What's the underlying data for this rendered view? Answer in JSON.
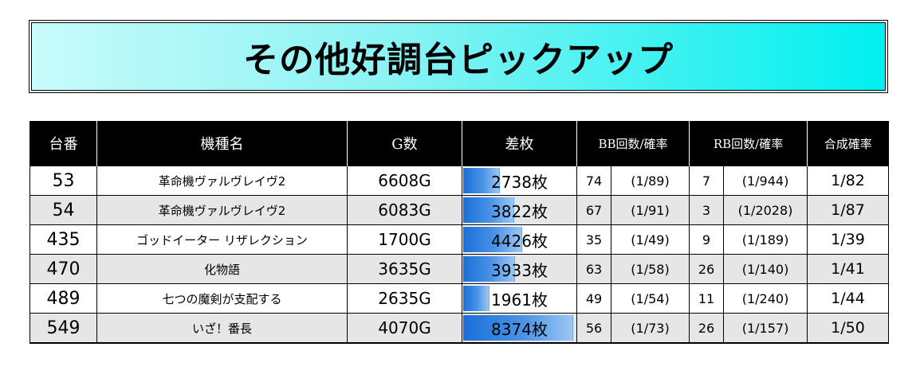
{
  "title": "その他好調台ピックアップ",
  "colors": {
    "header_bg": "#000000",
    "header_text": "#ffffff",
    "row_alt": "#e6e6e6",
    "title_gradient_start": "#c8fbfb",
    "title_gradient_end": "#00f0f0",
    "bar_color": "#1a6fd8"
  },
  "headers": {
    "unit": "台番",
    "machine": "機種名",
    "games": "G数",
    "diff": "差枚",
    "bb": "BB回数/確率",
    "rb": "RB回数/確率",
    "combined": "合成確率"
  },
  "diff_bar_max": 8374,
  "rows": [
    {
      "unit": "53",
      "machine": "革命機ヴァルヴレイヴ2",
      "games": "6608G",
      "diff": "2738枚",
      "diff_value": 2738,
      "bb_count": "74",
      "bb_rate": "(1/89)",
      "rb_count": "7",
      "rb_rate": "(1/944)",
      "combined": "1/82"
    },
    {
      "unit": "54",
      "machine": "革命機ヴァルヴレイヴ2",
      "games": "6083G",
      "diff": "3822枚",
      "diff_value": 3822,
      "bb_count": "67",
      "bb_rate": "(1/91)",
      "rb_count": "3",
      "rb_rate": "(1/2028)",
      "combined": "1/87"
    },
    {
      "unit": "435",
      "machine": "ゴッドイーター リザレクション",
      "games": "1700G",
      "diff": "4426枚",
      "diff_value": 4426,
      "bb_count": "35",
      "bb_rate": "(1/49)",
      "rb_count": "9",
      "rb_rate": "(1/189)",
      "combined": "1/39"
    },
    {
      "unit": "470",
      "machine": "化物語",
      "games": "3635G",
      "diff": "3933枚",
      "diff_value": 3933,
      "bb_count": "63",
      "bb_rate": "(1/58)",
      "rb_count": "26",
      "rb_rate": "(1/140)",
      "combined": "1/41"
    },
    {
      "unit": "489",
      "machine": "七つの魔剣が支配する",
      "games": "2635G",
      "diff": "1961枚",
      "diff_value": 1961,
      "bb_count": "49",
      "bb_rate": "(1/54)",
      "rb_count": "11",
      "rb_rate": "(1/240)",
      "combined": "1/44"
    },
    {
      "unit": "549",
      "machine": "いざ！番長",
      "games": "4070G",
      "diff": "8374枚",
      "diff_value": 8374,
      "bb_count": "56",
      "bb_rate": "(1/73)",
      "rb_count": "26",
      "rb_rate": "(1/157)",
      "combined": "1/50"
    }
  ]
}
